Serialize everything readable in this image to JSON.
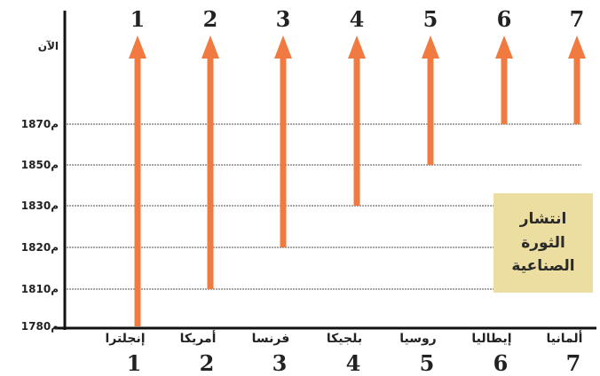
{
  "y_labels": [
    "الآن",
    "1870م",
    "1850م",
    "1830م",
    "1820م",
    "1810م",
    "1780م"
  ],
  "info_box": {
    "lines": [
      "انتشار",
      "الثورة",
      "الصناعية"
    ]
  },
  "colors": {
    "arrow": "#f07a3f",
    "gridline": "#8a8a8a",
    "axis": "#111111",
    "box": "#ecdda0"
  },
  "chart_data": {
    "type": "diagram",
    "countries": [
      {
        "number": "1",
        "name": "إنجلترا",
        "start": "1780م"
      },
      {
        "number": "2",
        "name": "أمريكا",
        "start": "1810م"
      },
      {
        "number": "3",
        "name": "فرنسا",
        "start": "1820م"
      },
      {
        "number": "4",
        "name": "بلجيكا",
        "start": "1830م"
      },
      {
        "number": "5",
        "name": "روسيا",
        "start": "1850م"
      },
      {
        "number": "6",
        "name": "إيطاليا",
        "start": "1870م"
      },
      {
        "number": "7",
        "name": "ألمانيا",
        "start": "1870م"
      }
    ]
  }
}
